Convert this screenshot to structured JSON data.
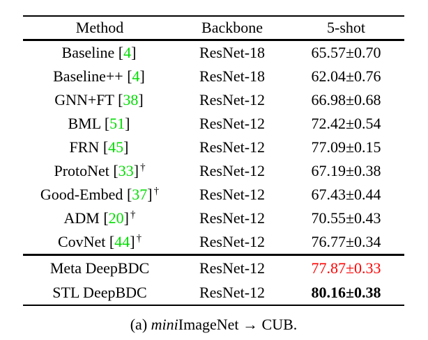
{
  "colors": {
    "citation_green": "#00dc00",
    "highlight_red": "#ff0000",
    "text_black": "#000000",
    "background": "#ffffff"
  },
  "table": {
    "headers": {
      "method": "Method",
      "backbone": "Backbone",
      "shot": "5-shot"
    },
    "rows": [
      {
        "method": "Baseline",
        "cite_open": "[",
        "cite": "4",
        "cite_close": "]",
        "backbone": "ResNet-18",
        "shot": "65.57±0.70"
      },
      {
        "method": "Baseline++",
        "cite_open": "[",
        "cite": "4",
        "cite_close": "]",
        "backbone": "ResNet-18",
        "shot": "62.04±0.76"
      },
      {
        "method": "GNN+FT",
        "cite_open": "[",
        "cite": "38",
        "cite_close": "]",
        "backbone": "ResNet-12",
        "shot": "66.98±0.68"
      },
      {
        "method": "BML",
        "cite_open": "[",
        "cite": "51",
        "cite_close": "]",
        "backbone": "ResNet-12",
        "shot": "72.42±0.54"
      },
      {
        "method": "FRN",
        "cite_open": "[",
        "cite": "45",
        "cite_close": "]",
        "backbone": "ResNet-12",
        "shot": "77.09±0.15"
      },
      {
        "method": "ProtoNet",
        "cite_open": "[",
        "cite": "33",
        "cite_close": "]",
        "dagger": "†",
        "backbone": "ResNet-12",
        "shot": "67.19±0.38"
      },
      {
        "method": "Good-Embed",
        "cite_open": "[",
        "cite": "37",
        "cite_close": "]",
        "dagger": "†",
        "backbone": "ResNet-12",
        "shot": "67.43±0.44"
      },
      {
        "method": "ADM",
        "cite_open": "[",
        "cite": "20",
        "cite_close": "]",
        "dagger": "†",
        "backbone": "ResNet-12",
        "shot": "70.55±0.43"
      },
      {
        "method": "CovNet",
        "cite_open": "[",
        "cite": "44",
        "cite_close": "]",
        "dagger": "†",
        "backbone": "ResNet-12",
        "shot": "76.77±0.34"
      },
      {
        "method": "Meta DeepBDC",
        "backbone": "ResNet-12",
        "shot": "77.87±0.33"
      },
      {
        "method": "STL DeepBDC",
        "backbone": "ResNet-12",
        "shot": "80.16±0.38"
      }
    ]
  },
  "caption": {
    "index": "(a) ",
    "dataset_italic": "mini",
    "dataset_rest": "ImageNet ",
    "arrow": "→",
    "target": " CUB."
  }
}
